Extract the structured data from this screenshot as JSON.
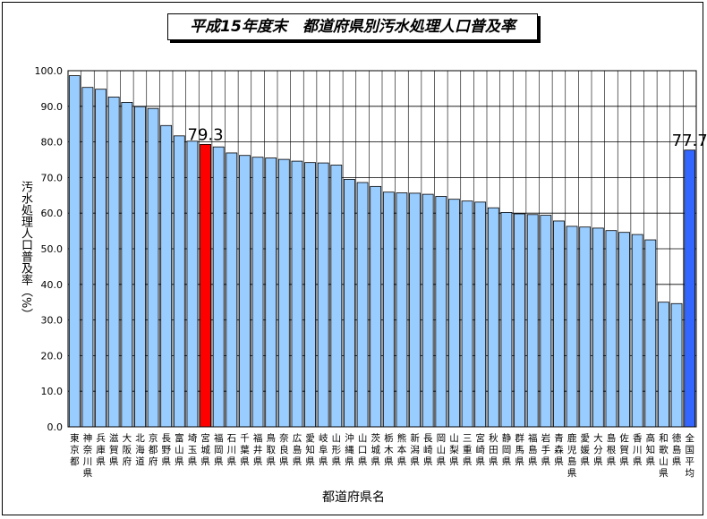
{
  "chart_data": {
    "type": "bar",
    "title": "平成15年度末　都道府県別汚水処理人口普及率",
    "xlabel": "都道府県名",
    "ylabel": "汚水処理人口普及率（%）",
    "ylim": [
      0,
      100
    ],
    "ytick_step": 10,
    "yticks": [
      "0.0",
      "10.0",
      "20.0",
      "30.0",
      "40.0",
      "50.0",
      "60.0",
      "70.0",
      "80.0",
      "90.0",
      "100.0"
    ],
    "grid": true,
    "categories": [
      "東京都",
      "神奈川県",
      "兵庫県",
      "滋賀県",
      "大阪府",
      "北海道",
      "京都府",
      "長野県",
      "富山県",
      "埼玉県",
      "宮城県",
      "福岡県",
      "石川県",
      "千葉県",
      "福井県",
      "鳥取県",
      "奈良県",
      "広島県",
      "愛知県",
      "岐阜県",
      "山形県",
      "沖縄県",
      "山口県",
      "茨城県",
      "栃木県",
      "熊本県",
      "新潟県",
      "長崎県",
      "岡山県",
      "山梨県",
      "三重県",
      "宮崎県",
      "秋田県",
      "静岡県",
      "群馬県",
      "福島県",
      "岩手県",
      "青森県",
      "鹿児島県",
      "愛媛県",
      "大分県",
      "島根県",
      "佐賀県",
      "香川県",
      "高知県",
      "和歌山県",
      "徳島県",
      "全国平均"
    ],
    "values": [
      98.6,
      95.3,
      94.8,
      92.6,
      91.1,
      89.9,
      89.4,
      84.6,
      81.7,
      80.2,
      79.3,
      78.6,
      76.9,
      76.2,
      75.7,
      75.5,
      75.1,
      74.6,
      74.2,
      74.1,
      73.5,
      69.5,
      68.6,
      67.5,
      65.9,
      65.7,
      65.6,
      65.3,
      64.7,
      63.9,
      63.4,
      63.1,
      61.5,
      60.2,
      59.8,
      59.6,
      59.4,
      57.8,
      56.3,
      56.1,
      55.8,
      55.1,
      54.6,
      54.0,
      52.5,
      35.0,
      34.6,
      77.7
    ],
    "highlights": {
      "宮城県": {
        "color": "#ff0000",
        "label": "79.3"
      },
      "全国平均": {
        "color": "#3366ff",
        "label": "77.7"
      }
    },
    "bar_color": "#99ccff",
    "bar_stroke": "#000000"
  }
}
